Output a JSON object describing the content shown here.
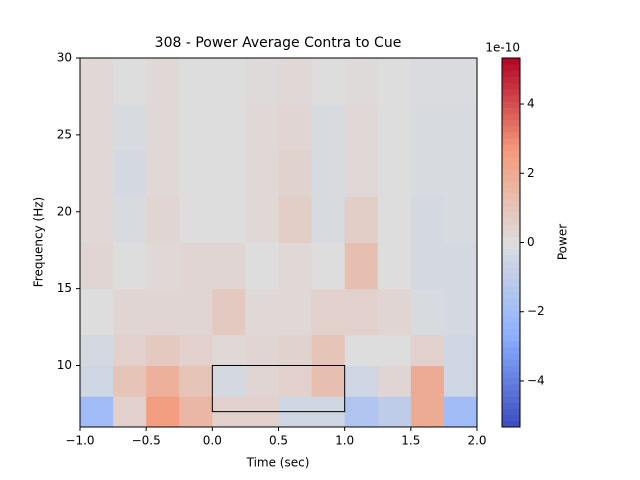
{
  "chart_data": {
    "type": "heatmap",
    "title": "308 - Power Average Contra to Cue",
    "x_label": "Time (sec)",
    "y_label": "Frequency (Hz)",
    "xlim": [
      -1,
      2
    ],
    "ylim": [
      6,
      30
    ],
    "xticks": [
      {
        "value": -1,
        "label": "−1.0"
      },
      {
        "value": -0.5,
        "label": "−0.5"
      },
      {
        "value": 0,
        "label": "0.0"
      },
      {
        "value": 0.5,
        "label": "0.5"
      },
      {
        "value": 1,
        "label": "1.0"
      },
      {
        "value": 1.5,
        "label": "1.5"
      },
      {
        "value": 2,
        "label": "2.0"
      }
    ],
    "yticks": [
      10,
      15,
      20,
      25,
      30
    ],
    "xbins": [
      -1,
      -0.75,
      -0.5,
      -0.25,
      0,
      0.25,
      0.5,
      0.75,
      1,
      1.25,
      1.5,
      1.75,
      2
    ],
    "ybins": [
      6,
      8,
      10,
      12,
      15,
      18,
      21,
      24,
      27,
      30
    ],
    "z": [
      [
        -2,
        0.5,
        2.5,
        1.5,
        0.5,
        0.5,
        -0.5,
        -0.5,
        -1.5,
        -1,
        2,
        -2
      ],
      [
        -0.5,
        1,
        1.8,
        1,
        -0.3,
        0.3,
        0.5,
        1.2,
        -0.5,
        0.3,
        2,
        -0.5
      ],
      [
        -0.3,
        0.5,
        0.8,
        0.5,
        0.2,
        0.3,
        0.4,
        1,
        0,
        0,
        0.5,
        -0.5
      ],
      [
        0,
        0.3,
        0.3,
        0.3,
        0.8,
        0.2,
        0.2,
        0.5,
        0.5,
        0.3,
        -0.2,
        -0.3
      ],
      [
        0.3,
        0,
        0.2,
        0.3,
        0.3,
        0,
        0.2,
        0,
        1.2,
        0,
        -0.3,
        -0.3
      ],
      [
        0.2,
        -0.2,
        0.3,
        0,
        0,
        0.2,
        0.6,
        -0.2,
        0.6,
        0,
        -0.3,
        -0.2
      ],
      [
        0.2,
        -0.3,
        0.2,
        0,
        0,
        0.2,
        0.4,
        -0.2,
        0.2,
        0,
        -0.2,
        -0.2
      ],
      [
        0.2,
        -0.2,
        0.2,
        0,
        0,
        0.2,
        0.3,
        -0.2,
        0.2,
        0,
        -0.2,
        -0.2
      ],
      [
        0.2,
        0,
        0.2,
        0,
        0,
        0.1,
        0.2,
        0,
        0.1,
        0,
        -0.1,
        -0.1
      ]
    ],
    "colormap": "coolwarm",
    "clim": [
      -5.33,
      5.33
    ],
    "colorbar_label": "Power",
    "colorbar_offset": "1e-10",
    "colorbar_ticks": [
      {
        "value": -4,
        "label": "−4"
      },
      {
        "value": -2,
        "label": "−2"
      },
      {
        "value": 0,
        "label": "0"
      },
      {
        "value": 2,
        "label": "2"
      },
      {
        "value": 4,
        "label": "4"
      }
    ],
    "box": {
      "x": [
        0,
        1
      ],
      "y": [
        7,
        10
      ]
    }
  }
}
